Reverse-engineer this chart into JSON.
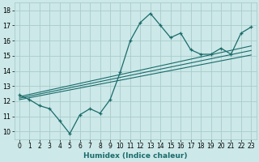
{
  "xlabel": "Humidex (Indice chaleur)",
  "bg_color": "#cce8e8",
  "grid_color": "#aacccc",
  "line_color": "#1a6b6b",
  "x_data": [
    0,
    1,
    2,
    3,
    4,
    5,
    6,
    7,
    8,
    9,
    10,
    11,
    12,
    13,
    14,
    15,
    16,
    17,
    18,
    19,
    20,
    21,
    22,
    23
  ],
  "y_data": [
    12.4,
    12.1,
    11.7,
    11.5,
    10.7,
    9.85,
    11.1,
    11.5,
    11.2,
    12.1,
    13.9,
    16.0,
    17.2,
    17.8,
    17.0,
    16.2,
    16.5,
    15.4,
    15.1,
    15.1,
    15.5,
    15.1,
    16.5,
    16.9
  ],
  "trend_lines": [
    {
      "x0": 0,
      "y0": 12.1,
      "x1": 23,
      "y1": 15.05
    },
    {
      "x0": 0,
      "y0": 12.2,
      "x1": 23,
      "y1": 15.35
    },
    {
      "x0": 0,
      "y0": 12.3,
      "x1": 23,
      "y1": 15.65
    }
  ],
  "xlim": [
    -0.5,
    23.5
  ],
  "ylim": [
    9.5,
    18.5
  ],
  "xticks": [
    0,
    1,
    2,
    3,
    4,
    5,
    6,
    7,
    8,
    9,
    10,
    11,
    12,
    13,
    14,
    15,
    16,
    17,
    18,
    19,
    20,
    21,
    22,
    23
  ],
  "yticks": [
    10,
    11,
    12,
    13,
    14,
    15,
    16,
    17,
    18
  ],
  "xlabel_fontsize": 6.5,
  "tick_fontsize": 5.5
}
